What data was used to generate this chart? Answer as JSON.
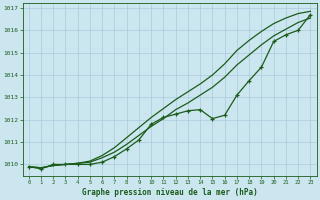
{
  "bg_color": "#cce6f0",
  "grid_color": "#aaccdd",
  "line_color": "#1a5c1a",
  "title": "Graphe pression niveau de la mer (hPa)",
  "xlim": [
    -0.5,
    23.5
  ],
  "ylim": [
    1009.5,
    1017.2
  ],
  "yticks": [
    1010,
    1011,
    1012,
    1013,
    1014,
    1015,
    1016,
    1017
  ],
  "xticks": [
    0,
    1,
    2,
    3,
    4,
    5,
    6,
    7,
    8,
    9,
    10,
    11,
    12,
    13,
    14,
    15,
    16,
    17,
    18,
    19,
    20,
    21,
    22,
    23
  ],
  "upper_line": [
    1009.9,
    1009.85,
    1009.95,
    1010.0,
    1010.05,
    1010.15,
    1010.4,
    1010.75,
    1011.2,
    1011.65,
    1012.1,
    1012.5,
    1012.9,
    1013.25,
    1013.6,
    1014.0,
    1014.5,
    1015.1,
    1015.55,
    1015.95,
    1016.3,
    1016.55,
    1016.75,
    1016.85
  ],
  "lower_line": [
    1009.9,
    1009.85,
    1009.95,
    1010.0,
    1010.05,
    1010.1,
    1010.3,
    1010.55,
    1010.9,
    1011.3,
    1011.7,
    1012.05,
    1012.45,
    1012.75,
    1013.1,
    1013.45,
    1013.9,
    1014.45,
    1014.9,
    1015.35,
    1015.75,
    1016.05,
    1016.35,
    1016.55
  ],
  "data_line": [
    1009.9,
    1009.8,
    1010.0,
    1010.0,
    1010.0,
    1010.0,
    1010.1,
    1010.35,
    1010.7,
    1011.1,
    1011.8,
    1012.1,
    1012.25,
    1012.4,
    1012.45,
    1012.05,
    1012.2,
    1013.1,
    1013.75,
    1014.35,
    1015.5,
    1015.8,
    1016.0,
    1016.7
  ]
}
